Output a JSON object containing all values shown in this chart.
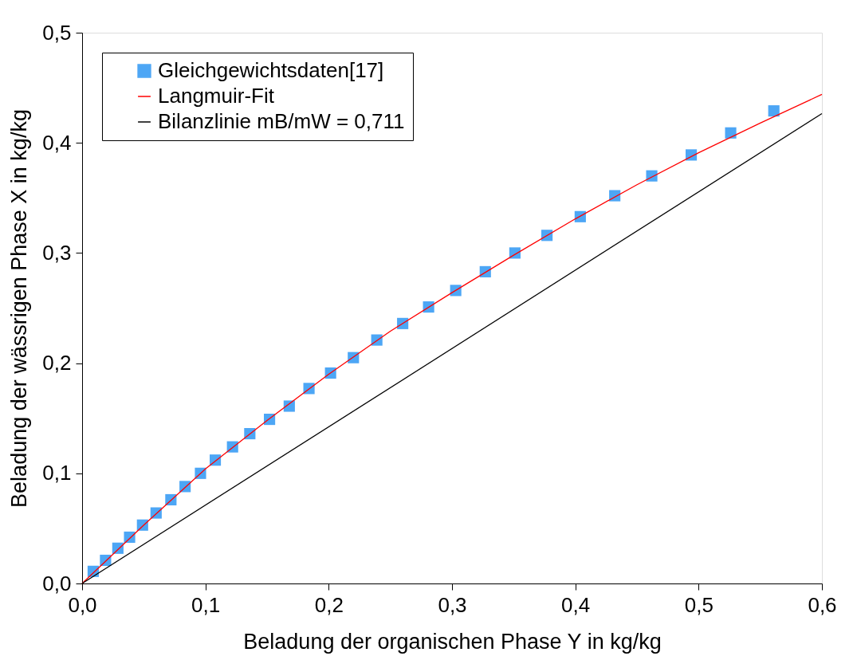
{
  "chart_data": {
    "type": "scatter",
    "xlabel": "Beladung der organischen Phase Y in kg/kg",
    "ylabel": "Beladung der wässrigen Phase X in kg/kg",
    "xlim": [
      0,
      0.6
    ],
    "ylim": [
      0,
      0.5
    ],
    "xticks": [
      {
        "value": 0,
        "label": "0,0"
      },
      {
        "value": 0.1,
        "label": "0,1"
      },
      {
        "value": 0.2,
        "label": "0,2"
      },
      {
        "value": 0.3,
        "label": "0,3"
      },
      {
        "value": 0.4,
        "label": "0,4"
      },
      {
        "value": 0.5,
        "label": "0,5"
      },
      {
        "value": 0.6,
        "label": "0,6"
      }
    ],
    "yticks": [
      {
        "value": 0,
        "label": "0,0"
      },
      {
        "value": 0.1,
        "label": "0,1"
      },
      {
        "value": 0.2,
        "label": "0,2"
      },
      {
        "value": 0.3,
        "label": "0,3"
      },
      {
        "value": 0.4,
        "label": "0,4"
      },
      {
        "value": 0.5,
        "label": "0,5"
      }
    ],
    "grid": false,
    "legend": "top left",
    "series": [
      {
        "name": "Gleichgewichtsdaten[17]",
        "marker": "square",
        "color": "#4da6f5",
        "x": [
          0.009,
          0.019,
          0.029,
          0.0385,
          0.049,
          0.06,
          0.072,
          0.0835,
          0.096,
          0.108,
          0.122,
          0.136,
          0.152,
          0.168,
          0.184,
          0.2015,
          0.22,
          0.239,
          0.26,
          0.281,
          0.303,
          0.327,
          0.351,
          0.377,
          0.404,
          0.432,
          0.462,
          0.494,
          0.526,
          0.561
        ],
        "values": [
          0.011,
          0.021,
          0.032,
          0.042,
          0.053,
          0.064,
          0.076,
          0.088,
          0.1,
          0.112,
          0.124,
          0.136,
          0.149,
          0.161,
          0.177,
          0.191,
          0.205,
          0.221,
          0.236,
          0.251,
          0.266,
          0.283,
          0.3,
          0.316,
          0.333,
          0.352,
          0.37,
          0.389,
          0.409,
          0.429
        ]
      },
      {
        "name": "Langmuir-Fit",
        "type": "line",
        "marker": "none",
        "line_style": "solid",
        "color": "#ff0000",
        "x": [
          0,
          0.05,
          0.1,
          0.15,
          0.2,
          0.25,
          0.3,
          0.35,
          0.4,
          0.45,
          0.5,
          0.55,
          0.6
        ],
        "values": [
          0,
          0.053,
          0.104,
          0.148,
          0.19,
          0.229,
          0.264,
          0.298,
          0.331,
          0.362,
          0.391,
          0.418,
          0.444
        ]
      },
      {
        "name": "Bilanzlinie mB/mW = 0,711",
        "type": "line",
        "marker": "none",
        "line_style": "solid",
        "color": "#000000",
        "x": [
          0,
          0.6
        ],
        "values": [
          0,
          0.4266
        ]
      }
    ]
  }
}
